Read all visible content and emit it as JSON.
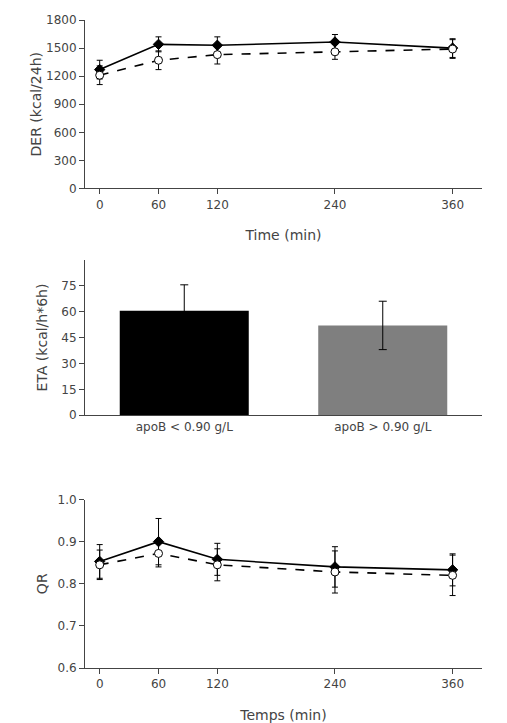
{
  "chart_data": [
    {
      "type": "line",
      "x": [
        0,
        60,
        120,
        240,
        360
      ],
      "series": [
        {
          "values": [
            1270,
            1540,
            1530,
            1565,
            1500
          ],
          "errors": [
            100,
            80,
            90,
            80,
            100
          ],
          "color": "#000000",
          "marker": "diamond",
          "line_style": "solid"
        },
        {
          "values": [
            1210,
            1370,
            1430,
            1460,
            1490
          ],
          "errors": [
            100,
            100,
            100,
            80,
            100
          ],
          "color": "#000000",
          "marker": "open circle",
          "line_style": "dashed"
        }
      ],
      "xlabel": "Time (min)",
      "ylabel": "DER (kcal/24h)",
      "xlim": [
        -15,
        390
      ],
      "xticks": [
        0,
        60,
        120,
        240,
        360
      ],
      "ylim": [
        0,
        1800
      ],
      "yticks": [
        0,
        300,
        600,
        900,
        1200,
        1500,
        1800
      ],
      "grid": false
    },
    {
      "type": "bar",
      "categories": [
        "apoB < 0.90 g/L",
        "apoB > 0.90 g/L"
      ],
      "values": [
        60.5,
        52.0
      ],
      "errors": [
        15.0,
        14.0
      ],
      "colors": [
        "#000000",
        "#7f7f7f"
      ],
      "ylabel": "ETA (kcal/h*6h)",
      "ylim": [
        0,
        90
      ],
      "yticks": [
        0,
        15,
        30,
        45,
        60,
        75
      ],
      "grid": false
    },
    {
      "type": "line",
      "x": [
        0,
        60,
        120,
        240,
        360
      ],
      "series": [
        {
          "values": [
            0.853,
            0.9,
            0.858,
            0.84,
            0.833
          ],
          "errors": [
            0.04,
            0.055,
            0.038,
            0.048,
            0.038
          ],
          "color": "#000000",
          "marker": "diamond",
          "line_style": "solid"
        },
        {
          "values": [
            0.845,
            0.872,
            0.845,
            0.828,
            0.82
          ],
          "errors": [
            0.035,
            0.032,
            0.038,
            0.05,
            0.048
          ],
          "color": "#000000",
          "marker": "open circle",
          "line_style": "dashed"
        }
      ],
      "xlabel": "Temps (min)",
      "ylabel": "QR",
      "xlim": [
        -15,
        390
      ],
      "xticks": [
        0,
        60,
        120,
        240,
        360
      ],
      "ylim": [
        0.6,
        1.0
      ],
      "yticks": [
        0.6,
        0.7,
        0.8,
        0.9,
        {
          "value": 1.0,
          "label": "1.0"
        }
      ],
      "grid": false
    }
  ]
}
